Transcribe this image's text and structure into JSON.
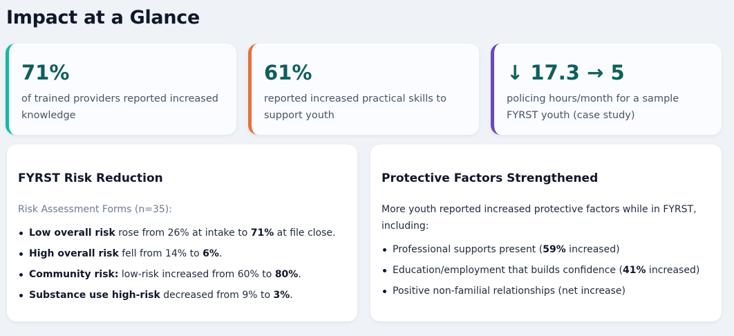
{
  "page": {
    "title": "Impact at a Glance"
  },
  "stats": [
    {
      "value": "71%",
      "description": "of trained providers reported increased knowledge",
      "accent": "#14b8a6"
    },
    {
      "value": "61%",
      "description": "reported increased practical skills to support youth",
      "accent": "#e8703a"
    },
    {
      "value": "↓ 17.3 → 5",
      "description": "policing hours/month for a sample FYRST youth (case study)",
      "accent": "#6b46c1"
    }
  ],
  "risk_card": {
    "title": "FYRST Risk Reduction",
    "subtitle": "Risk Assessment Forms (n=35):",
    "items": [
      {
        "p1": "Low overall risk",
        "p2": " rose from 26% at intake to ",
        "p3": "71%",
        "p4": " at file close."
      },
      {
        "p1": "High overall risk",
        "p2": " fell from 14% to ",
        "p3": "6%",
        "p4": "."
      },
      {
        "p1": "Community risk:",
        "p2": " low-risk increased from 60% to ",
        "p3": "80%",
        "p4": "."
      },
      {
        "p1": "Substance use high-risk",
        "p2": " decreased from 9% to ",
        "p3": "3%",
        "p4": "."
      }
    ]
  },
  "protective_card": {
    "title": "Protective Factors Strengthened",
    "intro": "More youth reported increased protective factors while in FYRST, including:",
    "items": [
      {
        "p1": "Professional supports present (",
        "p2": "59%",
        "p3": " increased)"
      },
      {
        "p1": "Education/employment that builds confidence (",
        "p2": "41%",
        "p3": " increased)"
      },
      {
        "p1": "Positive non-familial relationships (net increase)",
        "p2": "",
        "p3": ""
      }
    ]
  }
}
